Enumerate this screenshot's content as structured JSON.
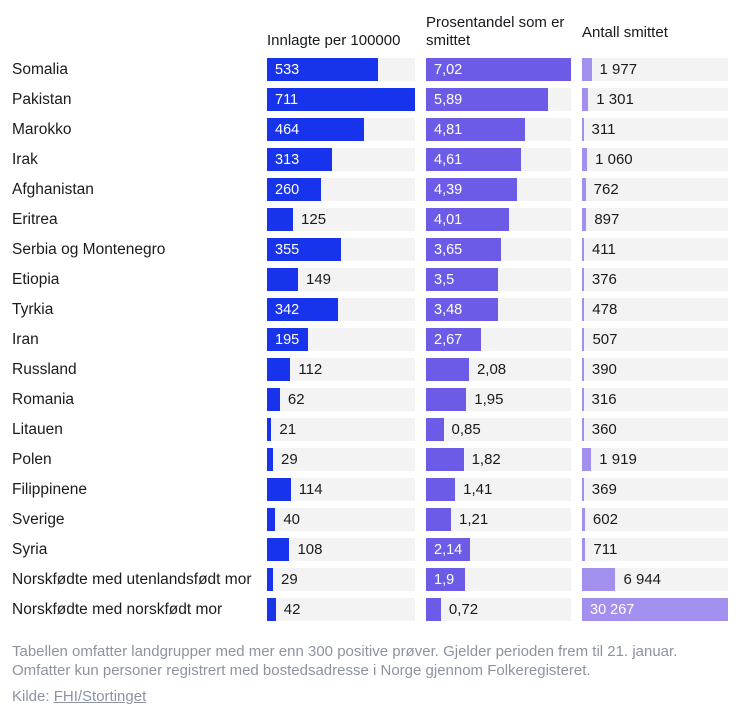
{
  "colors": {
    "bar_innlagte": "#1733eb",
    "bar_prosent": "#6b5be7",
    "bar_antall": "#a38fee",
    "track_bg": "#f3f3f4",
    "label_text": "#1b1b1b",
    "footer_text": "#8c93a0"
  },
  "chart_data": {
    "type": "bar",
    "orientation": "horizontal",
    "columns": [
      {
        "key": "innlagte",
        "label": "Innlagte per 100000",
        "max": 711,
        "color": "#1733eb"
      },
      {
        "key": "prosent",
        "label": "Prosentandel som er smittet",
        "max": 7.02,
        "color": "#6b5be7"
      },
      {
        "key": "antall",
        "label": "Antall smittet",
        "max": 30267,
        "color": "#a38fee"
      }
    ],
    "rows": [
      {
        "label": "Somalia",
        "values": [
          {
            "v": 533,
            "text": "533",
            "inside": true
          },
          {
            "v": 7.02,
            "text": "7,02",
            "inside": true
          },
          {
            "v": 1977,
            "text": "1 977",
            "inside": false
          }
        ]
      },
      {
        "label": "Pakistan",
        "values": [
          {
            "v": 711,
            "text": "711",
            "inside": true
          },
          {
            "v": 5.89,
            "text": "5,89",
            "inside": true
          },
          {
            "v": 1301,
            "text": "1 301",
            "inside": false
          }
        ]
      },
      {
        "label": "Marokko",
        "values": [
          {
            "v": 464,
            "text": "464",
            "inside": true
          },
          {
            "v": 4.81,
            "text": "4,81",
            "inside": true
          },
          {
            "v": 311,
            "text": "311",
            "inside": false
          }
        ]
      },
      {
        "label": "Irak",
        "values": [
          {
            "v": 313,
            "text": "313",
            "inside": true
          },
          {
            "v": 4.61,
            "text": "4,61",
            "inside": true
          },
          {
            "v": 1060,
            "text": "1 060",
            "inside": false
          }
        ]
      },
      {
        "label": "Afghanistan",
        "values": [
          {
            "v": 260,
            "text": "260",
            "inside": true
          },
          {
            "v": 4.39,
            "text": "4,39",
            "inside": true
          },
          {
            "v": 762,
            "text": "762",
            "inside": false
          }
        ]
      },
      {
        "label": "Eritrea",
        "values": [
          {
            "v": 125,
            "text": "125",
            "inside": false
          },
          {
            "v": 4.01,
            "text": "4,01",
            "inside": true
          },
          {
            "v": 897,
            "text": "897",
            "inside": false
          }
        ]
      },
      {
        "label": "Serbia og Montenegro",
        "values": [
          {
            "v": 355,
            "text": "355",
            "inside": true
          },
          {
            "v": 3.65,
            "text": "3,65",
            "inside": true
          },
          {
            "v": 411,
            "text": "411",
            "inside": false
          }
        ]
      },
      {
        "label": "Etiopia",
        "values": [
          {
            "v": 149,
            "text": "149",
            "inside": false
          },
          {
            "v": 3.5,
            "text": "3,5",
            "inside": true
          },
          {
            "v": 376,
            "text": "376",
            "inside": false
          }
        ]
      },
      {
        "label": "Tyrkia",
        "values": [
          {
            "v": 342,
            "text": "342",
            "inside": true
          },
          {
            "v": 3.48,
            "text": "3,48",
            "inside": true
          },
          {
            "v": 478,
            "text": "478",
            "inside": false
          }
        ]
      },
      {
        "label": "Iran",
        "values": [
          {
            "v": 195,
            "text": "195",
            "inside": true
          },
          {
            "v": 2.67,
            "text": "2,67",
            "inside": true
          },
          {
            "v": 507,
            "text": "507",
            "inside": false
          }
        ]
      },
      {
        "label": "Russland",
        "values": [
          {
            "v": 112,
            "text": "112",
            "inside": false
          },
          {
            "v": 2.08,
            "text": "2,08",
            "inside": false
          },
          {
            "v": 390,
            "text": "390",
            "inside": false
          }
        ]
      },
      {
        "label": "Romania",
        "values": [
          {
            "v": 62,
            "text": "62",
            "inside": false
          },
          {
            "v": 1.95,
            "text": "1,95",
            "inside": false
          },
          {
            "v": 316,
            "text": "316",
            "inside": false
          }
        ]
      },
      {
        "label": "Litauen",
        "values": [
          {
            "v": 21,
            "text": "21",
            "inside": false
          },
          {
            "v": 0.85,
            "text": "0,85",
            "inside": false
          },
          {
            "v": 360,
            "text": "360",
            "inside": false
          }
        ]
      },
      {
        "label": "Polen",
        "values": [
          {
            "v": 29,
            "text": "29",
            "inside": false
          },
          {
            "v": 1.82,
            "text": "1,82",
            "inside": false
          },
          {
            "v": 1919,
            "text": "1 919",
            "inside": false
          }
        ]
      },
      {
        "label": "Filippinene",
        "values": [
          {
            "v": 114,
            "text": "114",
            "inside": false
          },
          {
            "v": 1.41,
            "text": "1,41",
            "inside": false
          },
          {
            "v": 369,
            "text": "369",
            "inside": false
          }
        ]
      },
      {
        "label": "Sverige",
        "values": [
          {
            "v": 40,
            "text": "40",
            "inside": false
          },
          {
            "v": 1.21,
            "text": "1,21",
            "inside": false
          },
          {
            "v": 602,
            "text": "602",
            "inside": false
          }
        ]
      },
      {
        "label": "Syria",
        "values": [
          {
            "v": 108,
            "text": "108",
            "inside": false
          },
          {
            "v": 2.14,
            "text": "2,14",
            "inside": true
          },
          {
            "v": 711,
            "text": "711",
            "inside": false
          }
        ]
      },
      {
        "label": "Norskfødte med utenlandsfødt mor",
        "values": [
          {
            "v": 29,
            "text": "29",
            "inside": false
          },
          {
            "v": 1.9,
            "text": "1,9",
            "inside": true
          },
          {
            "v": 6944,
            "text": "6 944",
            "inside": false
          }
        ]
      },
      {
        "label": "Norskfødte med norskfødt mor",
        "values": [
          {
            "v": 42,
            "text": "42",
            "inside": false
          },
          {
            "v": 0.72,
            "text": "0,72",
            "inside": false
          },
          {
            "v": 30267,
            "text": "30 267",
            "inside": true
          }
        ]
      }
    ]
  },
  "footer": {
    "note": "Tabellen omfatter landgrupper med mer enn 300 positive prøver. Gjelder perioden frem til 21. januar. Omfatter kun personer registrert med bostedsadresse i Norge gjennom Folkeregisteret.",
    "source_prefix": "Kilde: ",
    "source_link": "FHI/Stortinget"
  }
}
